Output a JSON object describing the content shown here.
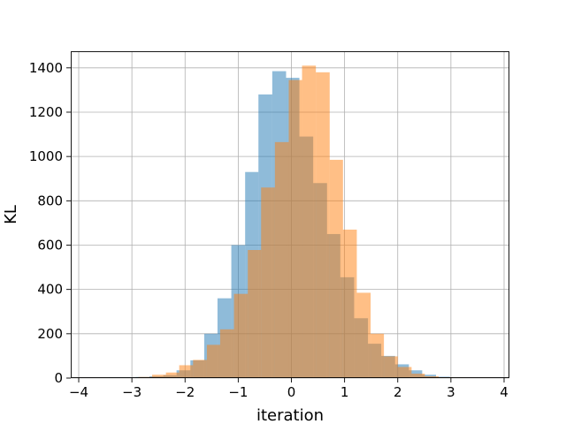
{
  "chart_data": {
    "type": "histogram",
    "xlabel": "iteration",
    "ylabel": "KL",
    "xlim": [
      -4.15,
      4.1
    ],
    "ylim": [
      0,
      1475
    ],
    "xticks": [
      -4,
      -3,
      -2,
      -1,
      0,
      1,
      2,
      3,
      4
    ],
    "xtick_labels": [
      "−4",
      "−3",
      "−2",
      "−1",
      "0",
      "1",
      "2",
      "3",
      "4"
    ],
    "yticks": [
      0,
      200,
      400,
      600,
      800,
      1000,
      1200,
      1400
    ],
    "ytick_labels": [
      "0",
      "200",
      "400",
      "600",
      "800",
      "1000",
      "1200",
      "1400"
    ],
    "grid": true,
    "series": [
      {
        "color": "#1f77b4",
        "opacity": 0.5,
        "bins": [
          [
            -3.95,
            -3.7,
            1
          ],
          [
            -3.7,
            -3.44,
            0
          ],
          [
            -3.44,
            -3.18,
            2
          ],
          [
            -3.18,
            -2.93,
            2
          ],
          [
            -2.93,
            -2.67,
            5
          ],
          [
            -2.67,
            -2.41,
            8
          ],
          [
            -2.41,
            -2.16,
            13
          ],
          [
            -2.16,
            -1.9,
            35
          ],
          [
            -1.9,
            -1.64,
            80
          ],
          [
            -1.64,
            -1.39,
            200
          ],
          [
            -1.39,
            -1.13,
            360
          ],
          [
            -1.13,
            -0.87,
            600
          ],
          [
            -0.87,
            -0.62,
            930
          ],
          [
            -0.62,
            -0.36,
            1280
          ],
          [
            -0.36,
            -0.1,
            1385
          ],
          [
            -0.1,
            0.15,
            1355
          ],
          [
            0.15,
            0.41,
            1090
          ],
          [
            0.41,
            0.67,
            880
          ],
          [
            0.67,
            0.92,
            650
          ],
          [
            0.92,
            1.18,
            455
          ],
          [
            1.18,
            1.44,
            270
          ],
          [
            1.44,
            1.69,
            155
          ],
          [
            1.69,
            1.95,
            100
          ],
          [
            1.95,
            2.21,
            62
          ],
          [
            2.21,
            2.46,
            35
          ],
          [
            2.46,
            2.72,
            15
          ],
          [
            2.72,
            2.98,
            6
          ],
          [
            2.98,
            3.23,
            2
          ],
          [
            3.23,
            3.49,
            1
          ],
          [
            3.49,
            3.75,
            0
          ]
        ]
      },
      {
        "color": "#ff7f0e",
        "opacity": 0.5,
        "bins": [
          [
            -2.88,
            -2.62,
            5
          ],
          [
            -2.62,
            -2.36,
            15
          ],
          [
            -2.36,
            -2.11,
            25
          ],
          [
            -2.11,
            -1.85,
            58
          ],
          [
            -1.85,
            -1.59,
            82
          ],
          [
            -1.59,
            -1.34,
            150
          ],
          [
            -1.34,
            -1.08,
            220
          ],
          [
            -1.08,
            -0.82,
            380
          ],
          [
            -0.82,
            -0.57,
            578
          ],
          [
            -0.57,
            -0.31,
            860
          ],
          [
            -0.31,
            -0.05,
            1065
          ],
          [
            -0.05,
            0.2,
            1345
          ],
          [
            0.2,
            0.46,
            1410
          ],
          [
            0.46,
            0.72,
            1380
          ],
          [
            0.72,
            0.97,
            985
          ],
          [
            0.97,
            1.23,
            670
          ],
          [
            1.23,
            1.49,
            385
          ],
          [
            1.49,
            1.74,
            200
          ],
          [
            1.74,
            2.0,
            98
          ],
          [
            2.0,
            2.26,
            50
          ],
          [
            2.26,
            2.51,
            20
          ],
          [
            2.51,
            2.77,
            8
          ],
          [
            2.77,
            3.03,
            3
          ],
          [
            3.03,
            3.28,
            2
          ],
          [
            3.28,
            3.54,
            1
          ],
          [
            3.54,
            3.8,
            1
          ]
        ]
      }
    ]
  }
}
